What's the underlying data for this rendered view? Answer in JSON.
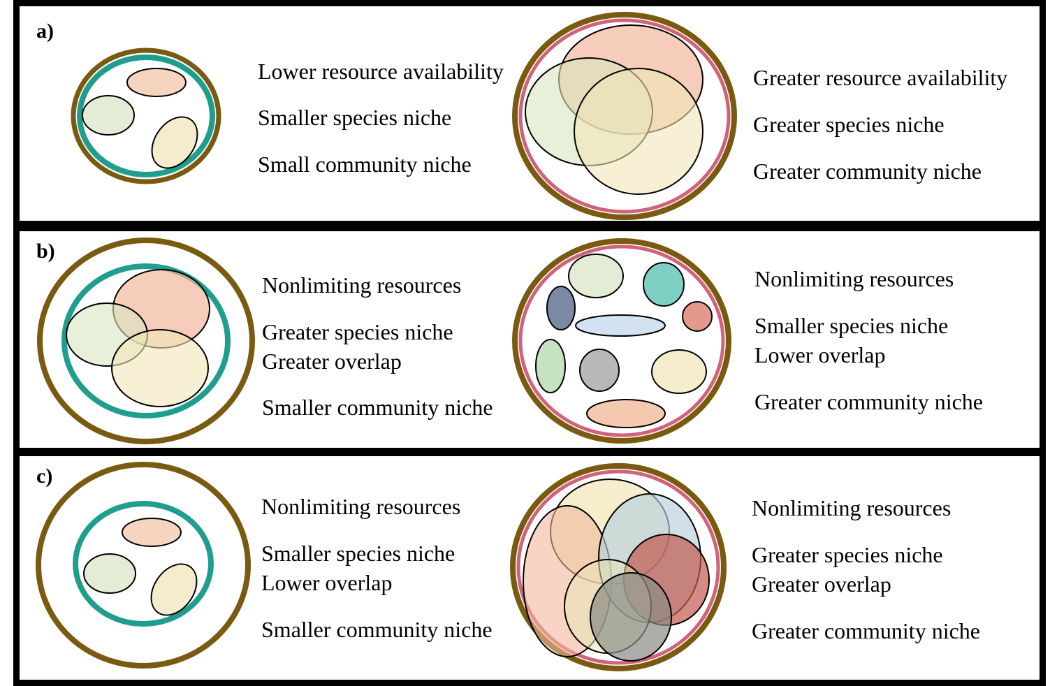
{
  "panels": [
    {
      "id": "a",
      "label": "a)",
      "left_text": [
        "Lower resource availability",
        "Smaller species niche",
        "Small community niche"
      ],
      "right_text": [
        "Greater resource availability",
        "Greater species niche",
        "Greater community niche"
      ]
    },
    {
      "id": "b",
      "label": "b)",
      "left_text": [
        "Nonlimiting resources",
        "Greater species niche",
        "Greater overlap",
        "Smaller community niche"
      ],
      "right_text": [
        "Nonlimiting resources",
        "Smaller species niche",
        "Lower overlap",
        "Greater community niche"
      ]
    },
    {
      "id": "c",
      "label": "c)",
      "left_text": [
        "Nonlimiting resources",
        "Smaller species niche",
        "Lower overlap",
        "Smaller community niche"
      ],
      "right_text": [
        "Nonlimiting resources",
        "Greater species niche",
        "Greater overlap",
        "Greater community niche"
      ]
    }
  ],
  "colors": {
    "resource_boundary": "#7a5a10",
    "community_niche_small": "#1f9e8e",
    "community_niche_large": "#d0627a",
    "frame": "#000000"
  }
}
